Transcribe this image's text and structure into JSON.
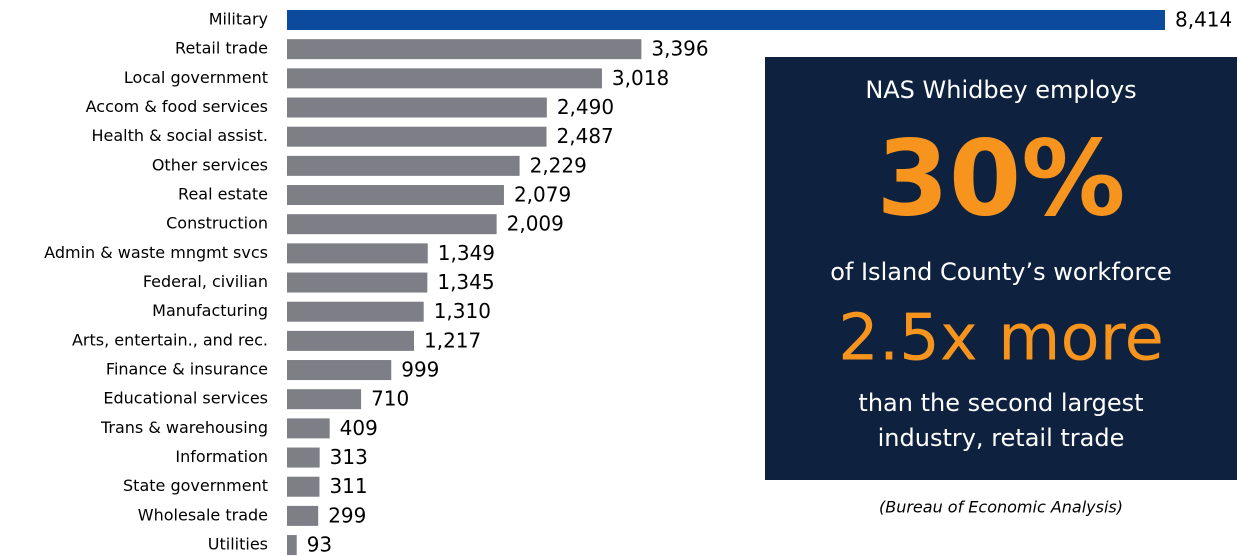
{
  "chart_data": {
    "type": "bar",
    "orientation": "horizontal",
    "categories": [
      "Military",
      "Retail trade",
      "Local government",
      "Accom & food services",
      "Health & social assist.",
      "Other services",
      "Real estate",
      "Construction",
      "Admin & waste mngmt svcs",
      "Federal, civilian",
      "Manufacturing",
      "Arts, entertain., and rec.",
      "Finance & insurance",
      "Educational services",
      "Trans & warehousing",
      "Information",
      "State government",
      "Wholesale trade",
      "Utilities"
    ],
    "values": [
      8414,
      3396,
      3018,
      2490,
      2487,
      2229,
      2079,
      2009,
      1349,
      1345,
      1310,
      1217,
      999,
      710,
      409,
      313,
      311,
      299,
      93
    ],
    "value_labels": [
      "8,414",
      "3,396",
      "3,018",
      "2,490",
      "2,487",
      "2,229",
      "2,079",
      "2,009",
      "1,349",
      "1,345",
      "1,310",
      "1,217",
      "999",
      "710",
      "409",
      "313",
      "311",
      "299",
      "93"
    ],
    "colors": [
      "#0b4a9c",
      "#7d7e86",
      "#7d7e86",
      "#7d7e86",
      "#7d7e86",
      "#7d7e86",
      "#7d7e86",
      "#7d7e86",
      "#7d7e86",
      "#7d7e86",
      "#7d7e86",
      "#7d7e86",
      "#7d7e86",
      "#7d7e86",
      "#7d7e86",
      "#7d7e86",
      "#7d7e86",
      "#7d7e86",
      "#7d7e86"
    ],
    "annotations": [
      "NAS Whidbey employs",
      "30%",
      "of Island County’s workforce",
      "2.5x more",
      "than the second largest",
      "industry, retail trade"
    ],
    "source": "(Bureau of Economic Analysis)"
  }
}
